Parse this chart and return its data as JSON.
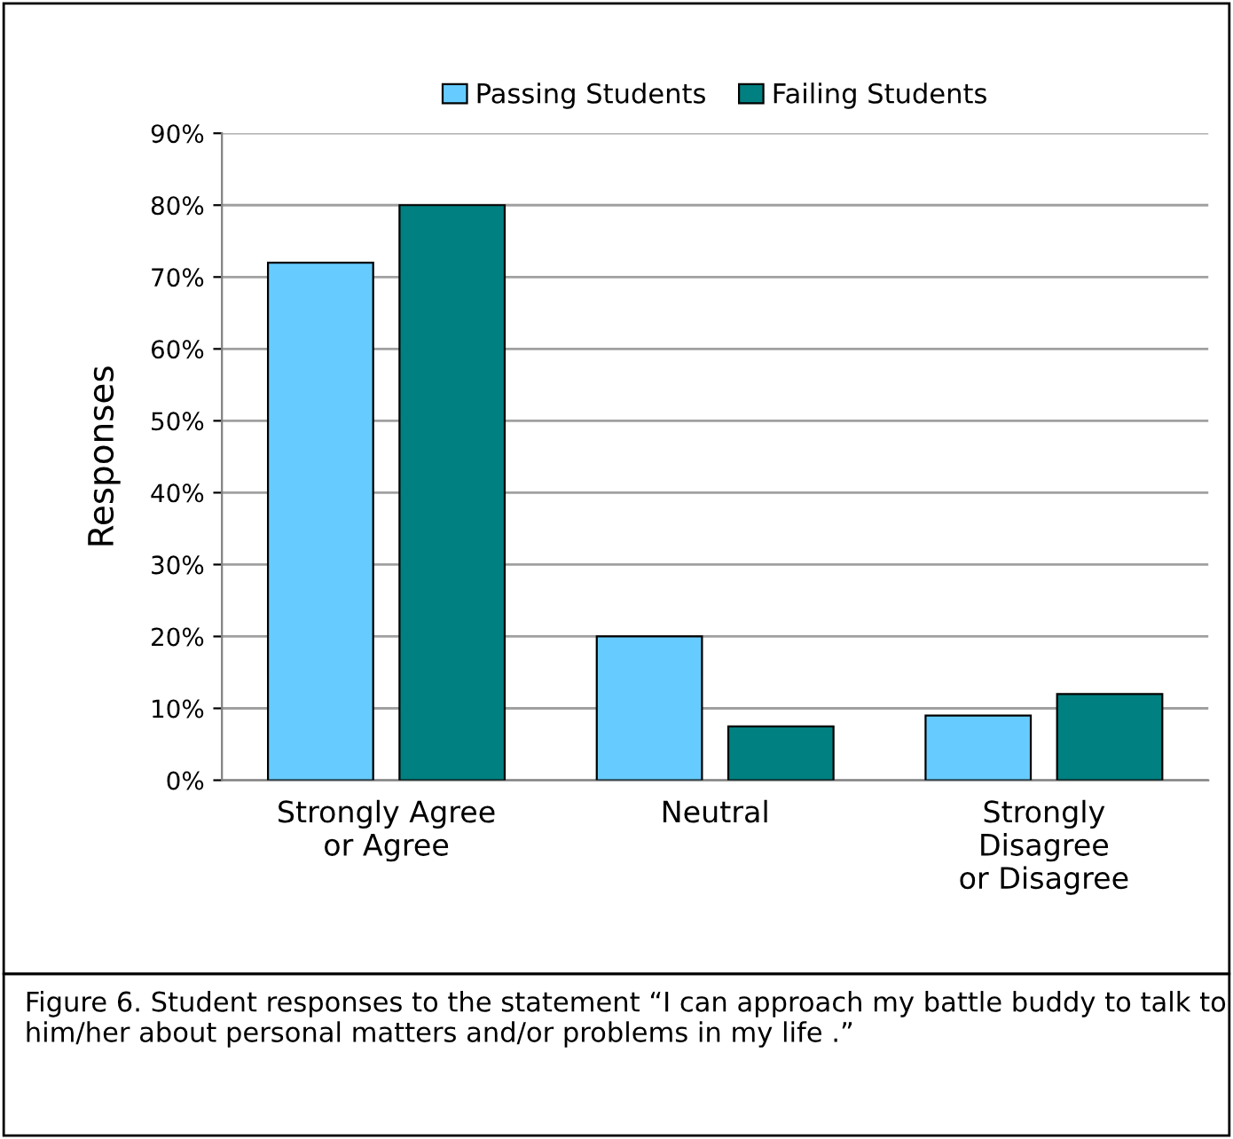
{
  "chart_data": {
    "type": "bar",
    "ylabel": "Responses",
    "categories": [
      "Strongly Agree\nor Agree",
      "Neutral",
      "Strongly\nDisagree\nor Disagree"
    ],
    "series": [
      {
        "name": "Passing Students",
        "color": "#66ccff",
        "values": [
          72,
          20,
          9
        ]
      },
      {
        "name": "Failing Students",
        "color": "#008080",
        "values": [
          80,
          7.5,
          12
        ]
      }
    ],
    "ylim": [
      0,
      90
    ],
    "yticks": [
      {
        "value": 0,
        "label": "0%"
      },
      {
        "value": 10,
        "label": "10%"
      },
      {
        "value": 20,
        "label": "20%"
      },
      {
        "value": 30,
        "label": "30%"
      },
      {
        "value": 40,
        "label": "40%"
      },
      {
        "value": 50,
        "label": "50%"
      },
      {
        "value": 60,
        "label": "60%"
      },
      {
        "value": 70,
        "label": "70%"
      },
      {
        "value": 80,
        "label": "80%"
      },
      {
        "value": 90,
        "label": "90%"
      }
    ],
    "grid": "y",
    "legend": "top",
    "annotations": [
      "Figure 6. Student responses to the statement “I can approach my battle buddy to talk to him/her about personal matters and/or problems in my life .”"
    ]
  }
}
